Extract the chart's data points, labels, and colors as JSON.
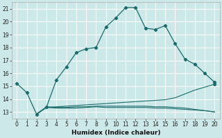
{
  "xlabel": "Humidex (Indice chaleur)",
  "bg_color": "#cce8e8",
  "grid_color": "#ffffff",
  "line_color": "#1a6b6b",
  "xlim": [
    -0.5,
    20.5
  ],
  "ylim": [
    12.5,
    21.5
  ],
  "xticks": [
    0,
    1,
    2,
    3,
    4,
    5,
    6,
    7,
    8,
    9,
    10,
    11,
    12,
    13,
    14,
    15,
    16,
    17,
    18,
    19,
    20
  ],
  "yticks": [
    13,
    14,
    15,
    16,
    17,
    18,
    19,
    20,
    21
  ],
  "main_line_x": [
    0,
    1,
    2,
    3,
    4,
    5,
    6,
    7,
    8,
    9,
    10,
    11,
    12,
    13,
    14,
    15,
    16,
    17,
    18,
    19,
    20
  ],
  "main_line_y": [
    15.2,
    14.5,
    12.8,
    13.4,
    15.5,
    16.5,
    17.6,
    17.9,
    18.0,
    19.6,
    20.3,
    21.1,
    21.1,
    19.5,
    19.4,
    19.7,
    18.3,
    17.1,
    16.7,
    16.0,
    15.3
  ],
  "diag_line_x": [
    2,
    3,
    4,
    5,
    6,
    7,
    8,
    9,
    10,
    11,
    12,
    13,
    14,
    15,
    16,
    17,
    18,
    20
  ],
  "diag_line_y": [
    12.85,
    13.35,
    13.4,
    13.45,
    13.5,
    13.55,
    13.6,
    13.65,
    13.7,
    13.75,
    13.8,
    13.85,
    13.9,
    13.95,
    14.1,
    14.4,
    14.7,
    15.15
  ],
  "flat_line1_x": [
    2,
    3,
    4,
    5,
    6,
    7,
    8,
    9,
    10,
    11,
    12,
    13,
    14,
    15,
    16,
    17,
    18,
    19,
    20
  ],
  "flat_line1_y": [
    12.85,
    13.35,
    13.3,
    13.3,
    13.3,
    13.35,
    13.4,
    13.35,
    13.35,
    13.35,
    13.35,
    13.35,
    13.3,
    13.3,
    13.25,
    13.2,
    13.15,
    13.1,
    13.0
  ],
  "flat_line2_x": [
    2,
    3,
    4,
    5,
    6,
    7,
    8,
    9,
    10,
    11,
    12,
    13,
    14,
    15,
    16,
    17,
    18,
    19,
    20
  ],
  "flat_line2_y": [
    12.85,
    13.4,
    13.35,
    13.35,
    13.4,
    13.4,
    13.45,
    13.45,
    13.45,
    13.45,
    13.45,
    13.45,
    13.4,
    13.4,
    13.35,
    13.3,
    13.2,
    13.1,
    13.0
  ]
}
